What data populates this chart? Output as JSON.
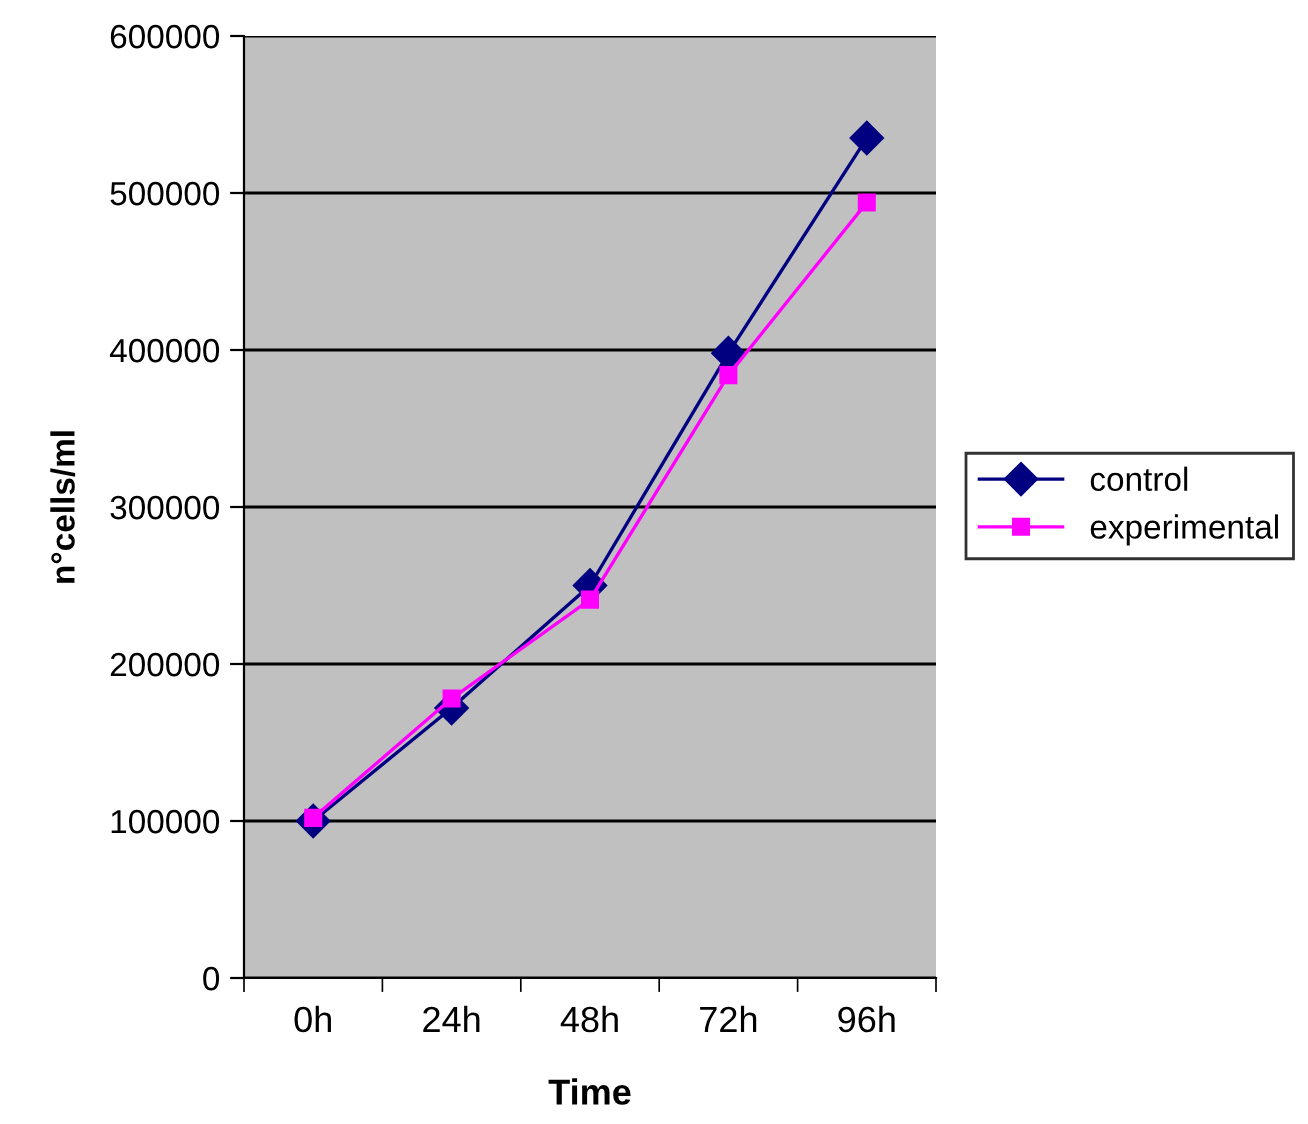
{
  "chart_data": {
    "type": "line",
    "xlabel": "Time",
    "ylabel": "n°cells/ml",
    "categories": [
      "0h",
      "24h",
      "48h",
      "72h",
      "96h"
    ],
    "series": [
      {
        "name": "control",
        "color": "#000080",
        "marker": "diamond",
        "values": [
          100000,
          172000,
          250000,
          398000,
          535000
        ]
      },
      {
        "name": "experimental",
        "color": "#ff00ff",
        "marker": "square",
        "values": [
          102000,
          178000,
          241000,
          384000,
          494000
        ]
      }
    ],
    "ylim": [
      0,
      600000
    ],
    "yticks": [
      0,
      100000,
      200000,
      300000,
      400000,
      500000,
      600000
    ],
    "grid": "y",
    "legend": "right",
    "line_style": "solid"
  }
}
